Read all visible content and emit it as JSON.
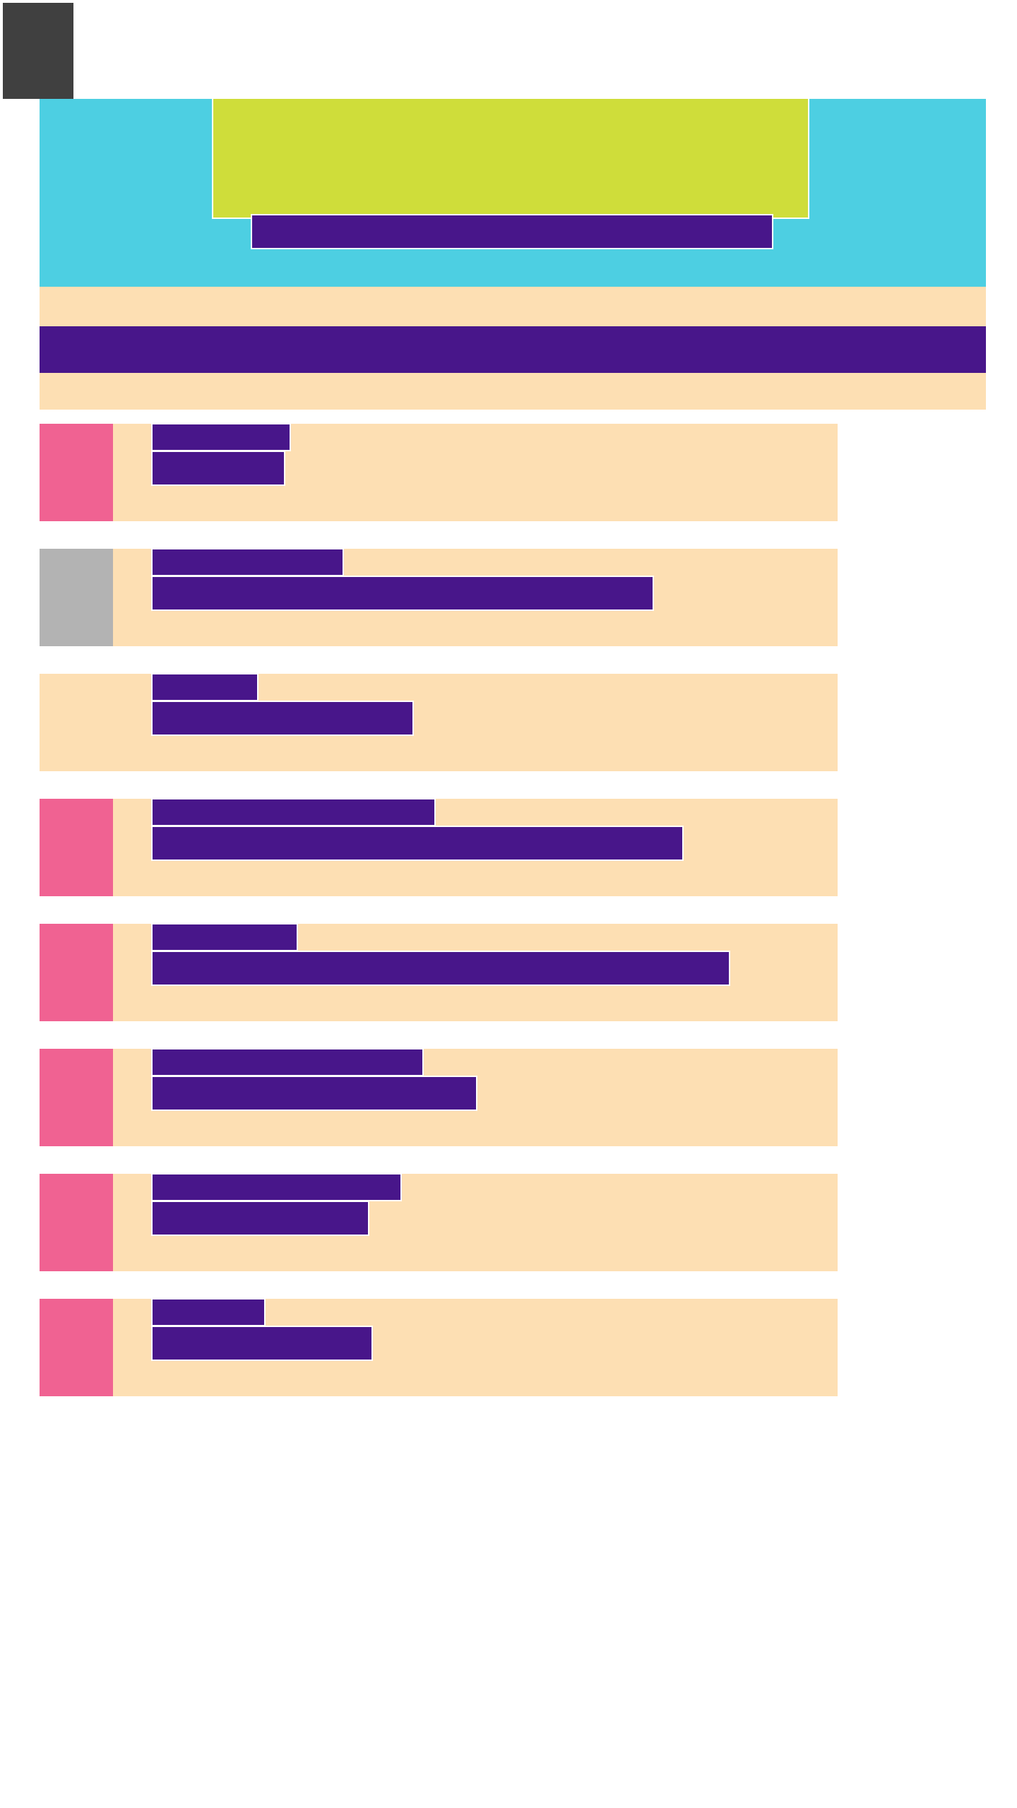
{
  "screen": {
    "colors": {
      "nav": "#404040",
      "header": "#4DCFE2",
      "hero": "#CFDD3A",
      "text_block": "#48168A",
      "band": "#FDDFB3",
      "thumb_pink": "#F06292",
      "thumb_gray": "#B3B3B3"
    },
    "list": {
      "items": [
        {
          "thumbnail": "pink"
        },
        {
          "thumbnail": "gray"
        },
        {
          "thumbnail": "none"
        },
        {
          "thumbnail": "pink"
        },
        {
          "thumbnail": "pink"
        },
        {
          "thumbnail": "pink"
        },
        {
          "thumbnail": "pink"
        },
        {
          "thumbnail": "pink"
        }
      ]
    }
  }
}
